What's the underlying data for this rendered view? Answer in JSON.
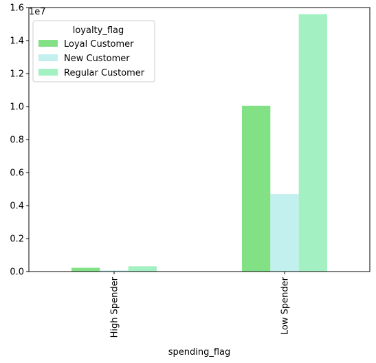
{
  "chart_data": {
    "type": "bar",
    "categories": [
      "High Spender",
      "Low Spender"
    ],
    "series": [
      {
        "name": "Loyal Customer",
        "color": "#82e085",
        "values": [
          230000,
          10050000
        ]
      },
      {
        "name": "New Customer",
        "color": "#c1f0ef",
        "values": [
          70000,
          4700000
        ]
      },
      {
        "name": "Regular Customer",
        "color": "#a3f0c2",
        "values": [
          320000,
          15600000
        ]
      }
    ],
    "xlabel": "spending_flag",
    "ylabel": "",
    "ylim": [
      0,
      16000000
    ],
    "y_ticks": [
      0,
      2000000,
      4000000,
      6000000,
      8000000,
      10000000,
      12000000,
      14000000,
      16000000
    ],
    "y_tick_labels": [
      "0.0",
      "0.2",
      "0.4",
      "0.6",
      "0.8",
      "1.0",
      "1.2",
      "1.4",
      "1.6"
    ],
    "y_offset_label": "1e7",
    "legend": {
      "title": "loyalty_flag",
      "placement": "top-left"
    },
    "grid": false
  }
}
